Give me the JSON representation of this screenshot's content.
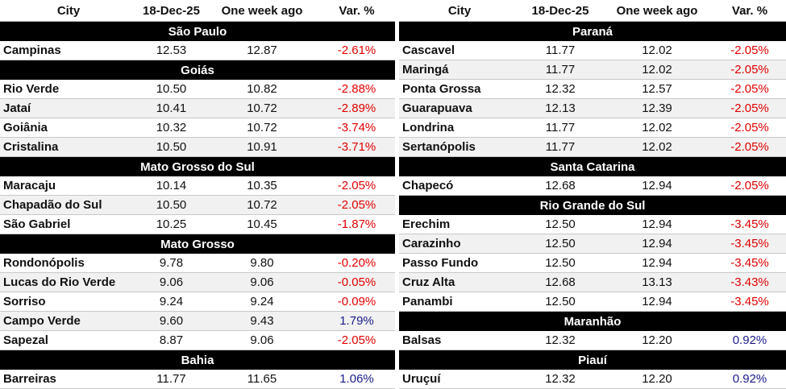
{
  "colors": {
    "negative": "#e00000",
    "positive": "#1a1a8c",
    "header_band": "#000000"
  },
  "columns": {
    "city": "City",
    "date": "18-Dec-25",
    "prev": "One week ago",
    "var": "Var. %"
  },
  "left": [
    {
      "region": "São Paulo",
      "rows": [
        {
          "city": "Campinas",
          "date": "12.53",
          "prev": "12.87",
          "var": "-2.61%"
        }
      ]
    },
    {
      "region": "Goiás",
      "rows": [
        {
          "city": "Rio Verde",
          "date": "10.50",
          "prev": "10.82",
          "var": "-2.88%"
        },
        {
          "city": "Jataí",
          "date": "10.41",
          "prev": "10.72",
          "var": "-2.89%"
        },
        {
          "city": "Goiânia",
          "date": "10.32",
          "prev": "10.72",
          "var": "-3.74%"
        },
        {
          "city": "Cristalina",
          "date": "10.50",
          "prev": "10.91",
          "var": "-3.71%"
        }
      ]
    },
    {
      "region": "Mato Grosso do Sul",
      "rows": [
        {
          "city": "Maracaju",
          "date": "10.14",
          "prev": "10.35",
          "var": "-2.05%"
        },
        {
          "city": "Chapadão do Sul",
          "date": "10.50",
          "prev": "10.72",
          "var": "-2.05%"
        },
        {
          "city": "São Gabriel",
          "date": "10.25",
          "prev": "10.45",
          "var": "-1.87%"
        }
      ]
    },
    {
      "region": "Mato Grosso",
      "rows": [
        {
          "city": "Rondonópolis",
          "date": "9.78",
          "prev": "9.80",
          "var": "-0.20%"
        },
        {
          "city": "Lucas do Rio Verde",
          "date": "9.06",
          "prev": "9.06",
          "var": "-0.05%"
        },
        {
          "city": "Sorriso",
          "date": "9.24",
          "prev": "9.24",
          "var": "-0.09%"
        },
        {
          "city": "Campo Verde",
          "date": "9.60",
          "prev": "9.43",
          "var": "1.79%"
        },
        {
          "city": "Sapezal",
          "date": "8.87",
          "prev": "9.06",
          "var": "-2.05%"
        }
      ]
    },
    {
      "region": "Bahia",
      "rows": [
        {
          "city": "Barreiras",
          "date": "11.77",
          "prev": "11.65",
          "var": "1.06%"
        }
      ]
    }
  ],
  "right": [
    {
      "region": "Paraná",
      "rows": [
        {
          "city": "Cascavel",
          "date": "11.77",
          "prev": "12.02",
          "var": "-2.05%"
        },
        {
          "city": "Maringá",
          "date": "11.77",
          "prev": "12.02",
          "var": "-2.05%"
        },
        {
          "city": "Ponta Grossa",
          "date": "12.32",
          "prev": "12.57",
          "var": "-2.05%"
        },
        {
          "city": "Guarapuava",
          "date": "12.13",
          "prev": "12.39",
          "var": "-2.05%"
        },
        {
          "city": "Londrina",
          "date": "11.77",
          "prev": "12.02",
          "var": "-2.05%"
        },
        {
          "city": "Sertanópolis",
          "date": "11.77",
          "prev": "12.02",
          "var": "-2.05%"
        }
      ]
    },
    {
      "region": "Santa Catarina",
      "rows": [
        {
          "city": "Chapecó",
          "date": "12.68",
          "prev": "12.94",
          "var": "-2.05%"
        }
      ]
    },
    {
      "region": "Rio Grande do Sul",
      "rows": [
        {
          "city": "Erechim",
          "date": "12.50",
          "prev": "12.94",
          "var": "-3.45%"
        },
        {
          "city": "Carazinho",
          "date": "12.50",
          "prev": "12.94",
          "var": "-3.45%"
        },
        {
          "city": "Passo Fundo",
          "date": "12.50",
          "prev": "12.94",
          "var": "-3.45%"
        },
        {
          "city": "Cruz Alta",
          "date": "12.68",
          "prev": "13.13",
          "var": "-3.43%"
        },
        {
          "city": "Panambi",
          "date": "12.50",
          "prev": "12.94",
          "var": "-3.45%"
        }
      ]
    },
    {
      "region": "Maranhão",
      "rows": [
        {
          "city": "Balsas",
          "date": "12.32",
          "prev": "12.20",
          "var": "0.92%"
        }
      ]
    },
    {
      "region": "Piauí",
      "rows": [
        {
          "city": "Uruçuí",
          "date": "12.32",
          "prev": "12.20",
          "var": "0.92%"
        }
      ]
    }
  ]
}
